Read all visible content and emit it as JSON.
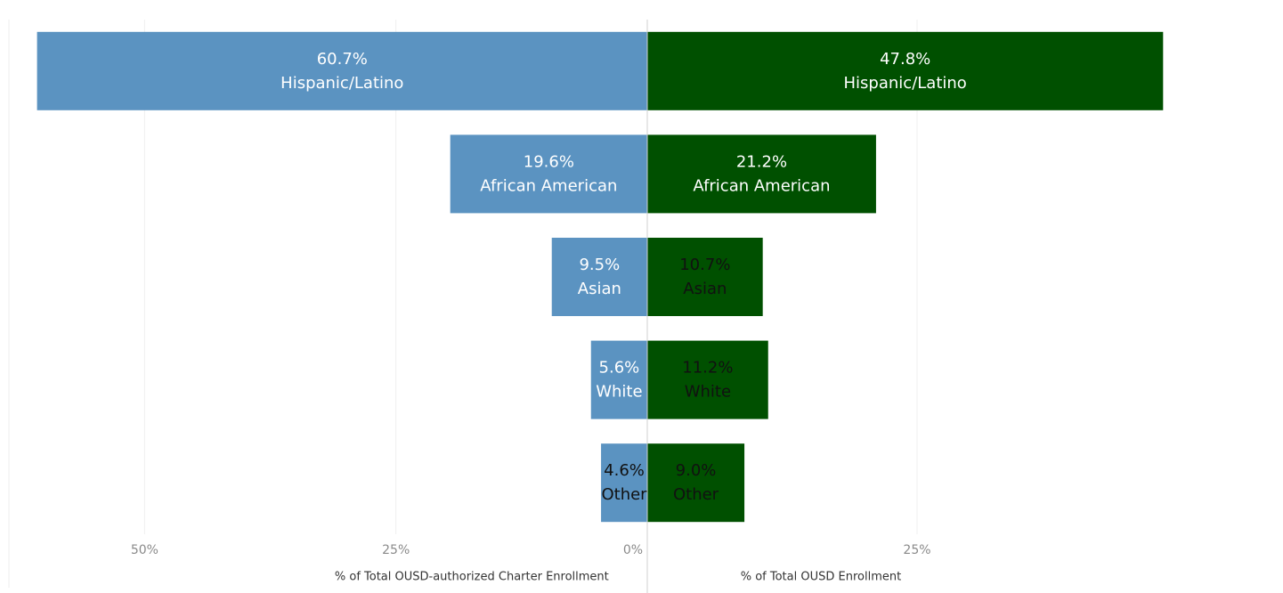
{
  "chart_data": [
    {
      "type": "bar",
      "direction": "left",
      "x_label": "% of Total OUSD-authorized Charter Enrollment",
      "categories": [
        "Hispanic/Latino",
        "African American",
        "Asian",
        "White",
        "Other"
      ],
      "values": [
        60.7,
        19.6,
        9.5,
        5.6,
        4.6
      ],
      "value_labels": [
        "60.7%",
        "19.6%",
        "9.5%",
        "5.6%",
        "4.6%"
      ],
      "label_colors": [
        "#ffffff",
        "#ffffff",
        "#ffffff",
        "#ffffff",
        "#111111"
      ],
      "color": "#5b93c1",
      "xlim": [
        0,
        63.5
      ],
      "xticks": [
        {
          "value": 0,
          "label": "0%"
        },
        {
          "value": 25,
          "label": "25%"
        },
        {
          "value": 50,
          "label": "50%"
        }
      ],
      "grid": true
    },
    {
      "type": "bar",
      "direction": "right",
      "x_label": "% of Total OUSD Enrollment",
      "categories": [
        "Hispanic/Latino",
        "African American",
        "Asian",
        "White",
        "Other"
      ],
      "values": [
        47.8,
        21.2,
        10.7,
        11.2,
        9.0
      ],
      "value_labels": [
        "47.8%",
        "21.2%",
        "10.7%",
        "11.2%",
        "9.0%"
      ],
      "label_colors": [
        "#ffffff",
        "#ffffff",
        "#111111",
        "#111111",
        "#111111"
      ],
      "color": "#005000",
      "xlim": [
        0,
        58.5
      ],
      "xticks": [
        {
          "value": 25,
          "label": "25%"
        }
      ],
      "grid": true
    }
  ]
}
